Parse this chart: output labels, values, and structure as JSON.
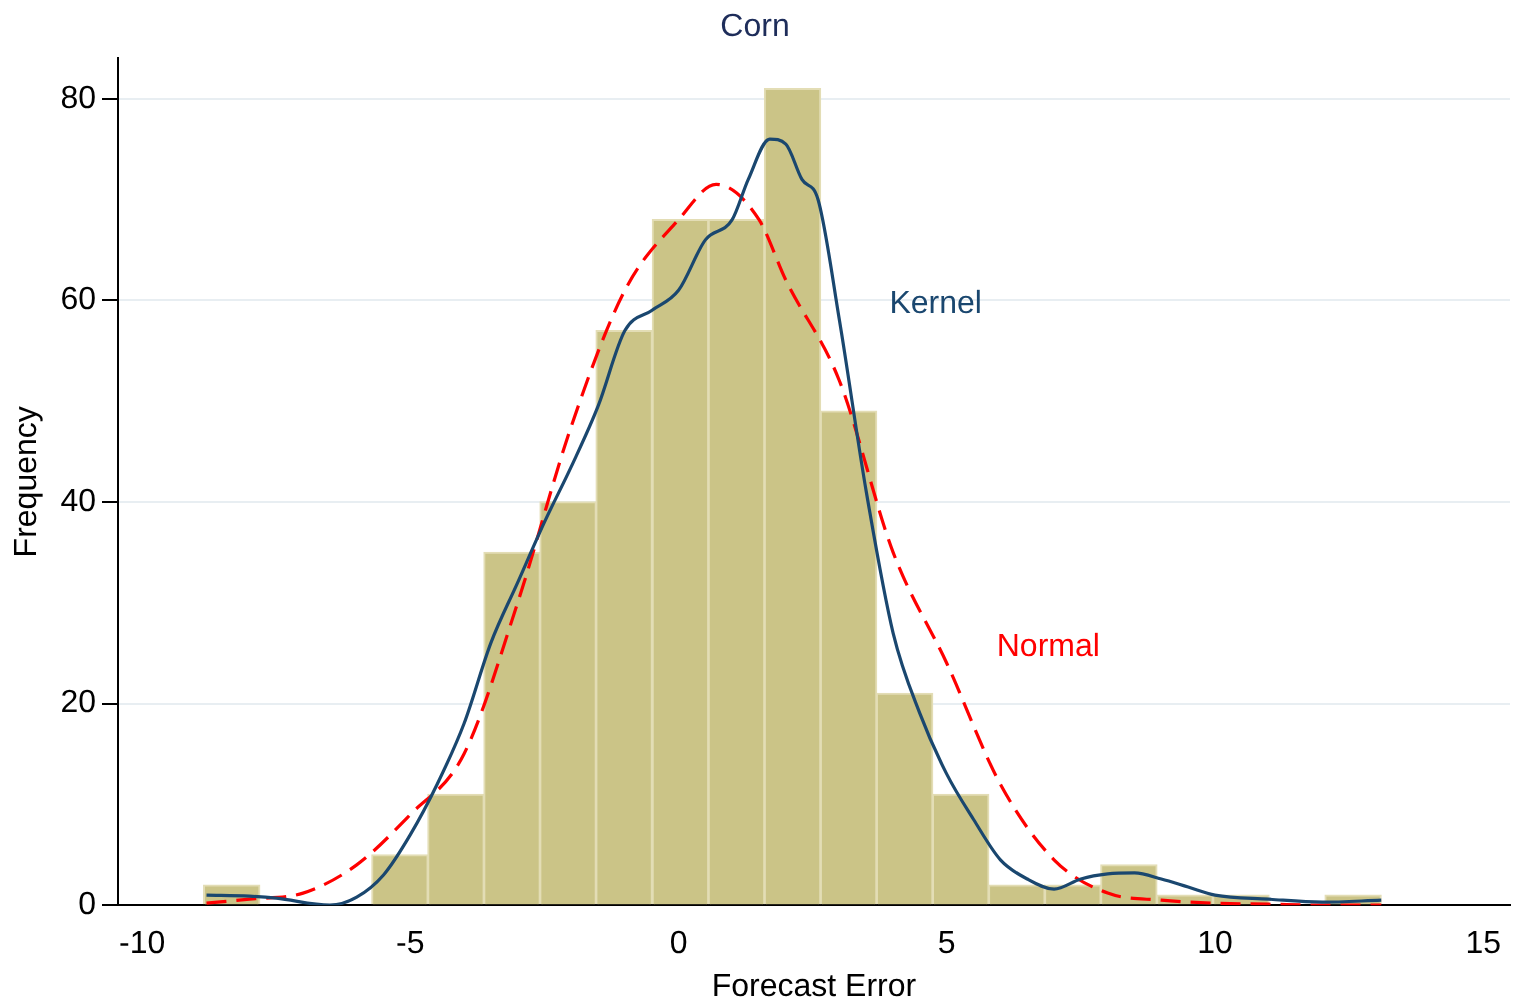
{
  "chart_data": {
    "type": "histogram",
    "title": "Corn",
    "xlabel": "Forecast Error",
    "ylabel": "Frequency",
    "bins": [
      -8.85,
      -7.81,
      -6.76,
      -5.72,
      -4.67,
      -3.63,
      -2.58,
      -1.54,
      -0.49,
      0.56,
      1.6,
      2.65,
      3.69,
      4.74,
      5.78,
      6.83,
      7.87,
      8.92,
      9.96,
      11.01,
      12.05,
      13.1
    ],
    "values": [
      2,
      0,
      0,
      5,
      11,
      35,
      40,
      57,
      68,
      68,
      81,
      49,
      21,
      11,
      2,
      2,
      4,
      1,
      1,
      0,
      1
    ],
    "color": "#cbc487",
    "series": [
      {
        "name": "Kernel",
        "type": "line",
        "color": "#1a476f",
        "line_style": "solid",
        "x": [
          -8.8,
          -8,
          -7.5,
          -6.5,
          -6,
          -5.5,
          -5,
          -4.5,
          -4,
          -3.5,
          -3,
          -2.5,
          -2,
          -1.5,
          -1,
          -0.5,
          0,
          0.5,
          1,
          1.3,
          1.7,
          2,
          2.3,
          2.6,
          3,
          3.5,
          4,
          4.5,
          5,
          5.5,
          6,
          6.5,
          7,
          7.5,
          8,
          8.5,
          9,
          9.5,
          10,
          11,
          12,
          13.1
        ],
        "values": [
          1,
          0.9,
          0.7,
          0,
          0.8,
          3,
          7,
          12,
          18,
          26,
          32,
          38,
          43.5,
          49.5,
          57,
          59,
          61,
          66,
          68,
          72,
          76,
          75.5,
          72,
          70,
          58,
          41,
          27,
          19,
          13,
          8.5,
          4.5,
          2.6,
          1.6,
          2.6,
          3.1,
          3.2,
          2.6,
          1.8,
          1,
          0.6,
          0.3,
          0.5
        ]
      },
      {
        "name": "Normal",
        "type": "line",
        "color": "#ff0000",
        "line_style": "dashed",
        "x": [
          -8.8,
          -8,
          -7,
          -6,
          -5,
          -4,
          -3,
          -2,
          -1,
          0,
          0.7,
          1.5,
          2,
          3,
          4,
          5,
          6,
          7,
          8,
          9,
          10,
          11,
          12,
          13.1
        ],
        "values": [
          0.2,
          0.6,
          1.2,
          4,
          9,
          15,
          30,
          47.5,
          61,
          68,
          71.5,
          68,
          62,
          52,
          35,
          24,
          12,
          4.5,
          1.2,
          0.5,
          0.2,
          0.1,
          0,
          0
        ]
      }
    ],
    "xlim": [
      -10.45,
      15.5
    ],
    "xticks": [
      -10,
      -5,
      0,
      5,
      10,
      15
    ],
    "ylim": [
      0,
      84
    ],
    "yticks": [
      0,
      20,
      40,
      60,
      80
    ],
    "grid": "y",
    "legend": false
  }
}
